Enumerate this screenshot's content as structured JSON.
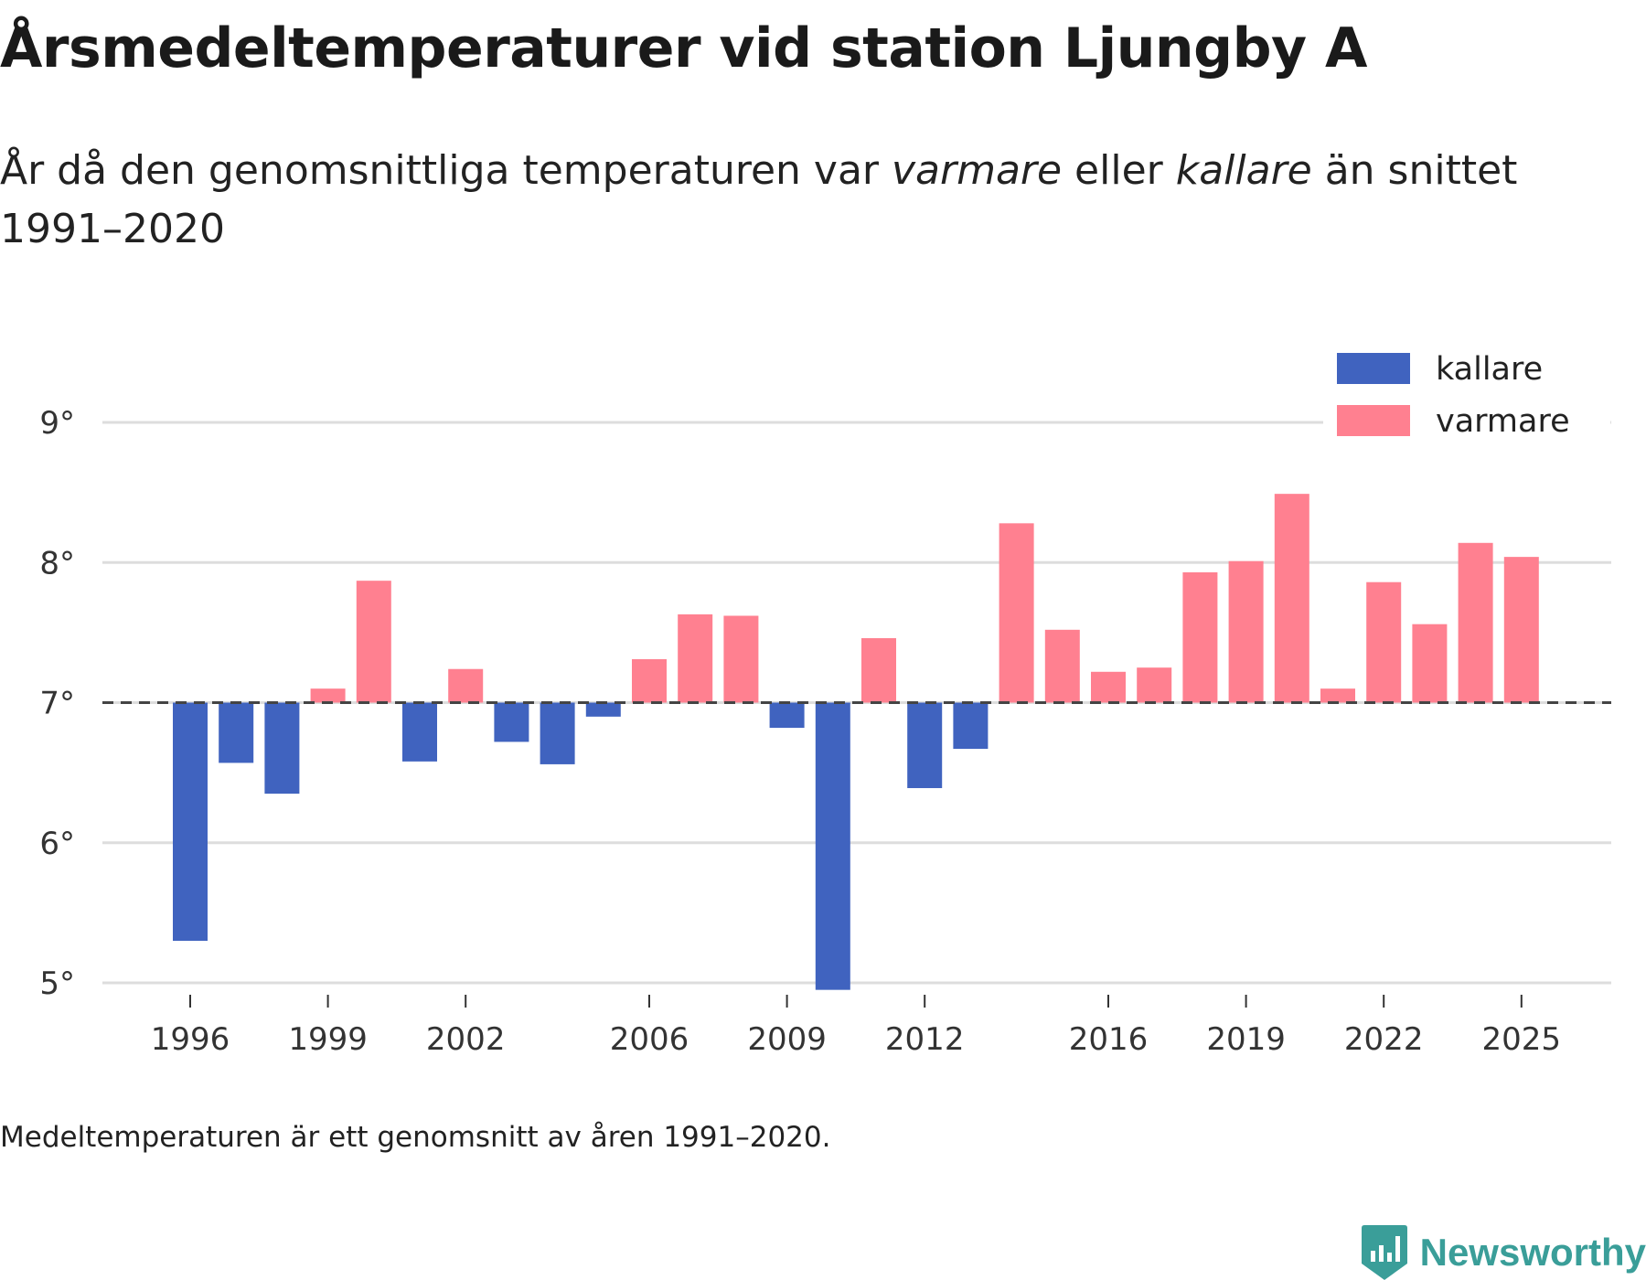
{
  "title": "Årsmedeltemperaturer vid station Ljungby A",
  "subtitle": {
    "before": "År då den genomsnittliga temperaturen var ",
    "warmer": "varmare",
    "middle": " eller ",
    "colder": "kallare",
    "after": " än snittet 1991–2020"
  },
  "note": "Medeltemperaturen är ett genomsnitt av åren 1991–2020.",
  "brand": "Newsworthy",
  "colors": {
    "colder": "#4063bf",
    "warmer": "#ff8090",
    "grid": "#dddddd",
    "baseline": "#444444",
    "brand": "#3a9e99"
  },
  "chart_data": {
    "type": "bar",
    "title": "Årsmedeltemperaturer vid station Ljungby A",
    "xlabel": "",
    "ylabel": "",
    "baseline": 7.0,
    "ylim": [
      5,
      9
    ],
    "ytick_values": [
      5,
      6,
      7,
      8,
      9
    ],
    "ytick_labels": [
      "5°",
      "6°",
      "7°",
      "8°",
      "9°"
    ],
    "xtick_labels": [
      "1996",
      "1999",
      "2002",
      "2006",
      "2009",
      "2012",
      "2016",
      "2019",
      "2022",
      "2025"
    ],
    "legend": [
      {
        "key": "colder",
        "label": "kallare"
      },
      {
        "key": "warmer",
        "label": "varmare"
      }
    ],
    "legend_position": "top-right",
    "categories": [
      1996,
      1997,
      1998,
      1999,
      2000,
      2001,
      2002,
      2003,
      2004,
      2005,
      2006,
      2007,
      2008,
      2009,
      2010,
      2011,
      2012,
      2013,
      2014,
      2015,
      2016,
      2017,
      2018,
      2019,
      2020,
      2021,
      2022,
      2023,
      2024,
      2025
    ],
    "values": [
      5.3,
      6.57,
      6.35,
      7.1,
      7.87,
      6.58,
      7.24,
      6.72,
      6.56,
      6.9,
      7.31,
      7.63,
      7.62,
      6.82,
      4.95,
      7.46,
      6.39,
      6.67,
      8.28,
      7.52,
      7.22,
      7.25,
      7.93,
      8.01,
      8.49,
      7.1,
      7.86,
      7.56,
      8.14,
      8.04
    ]
  }
}
